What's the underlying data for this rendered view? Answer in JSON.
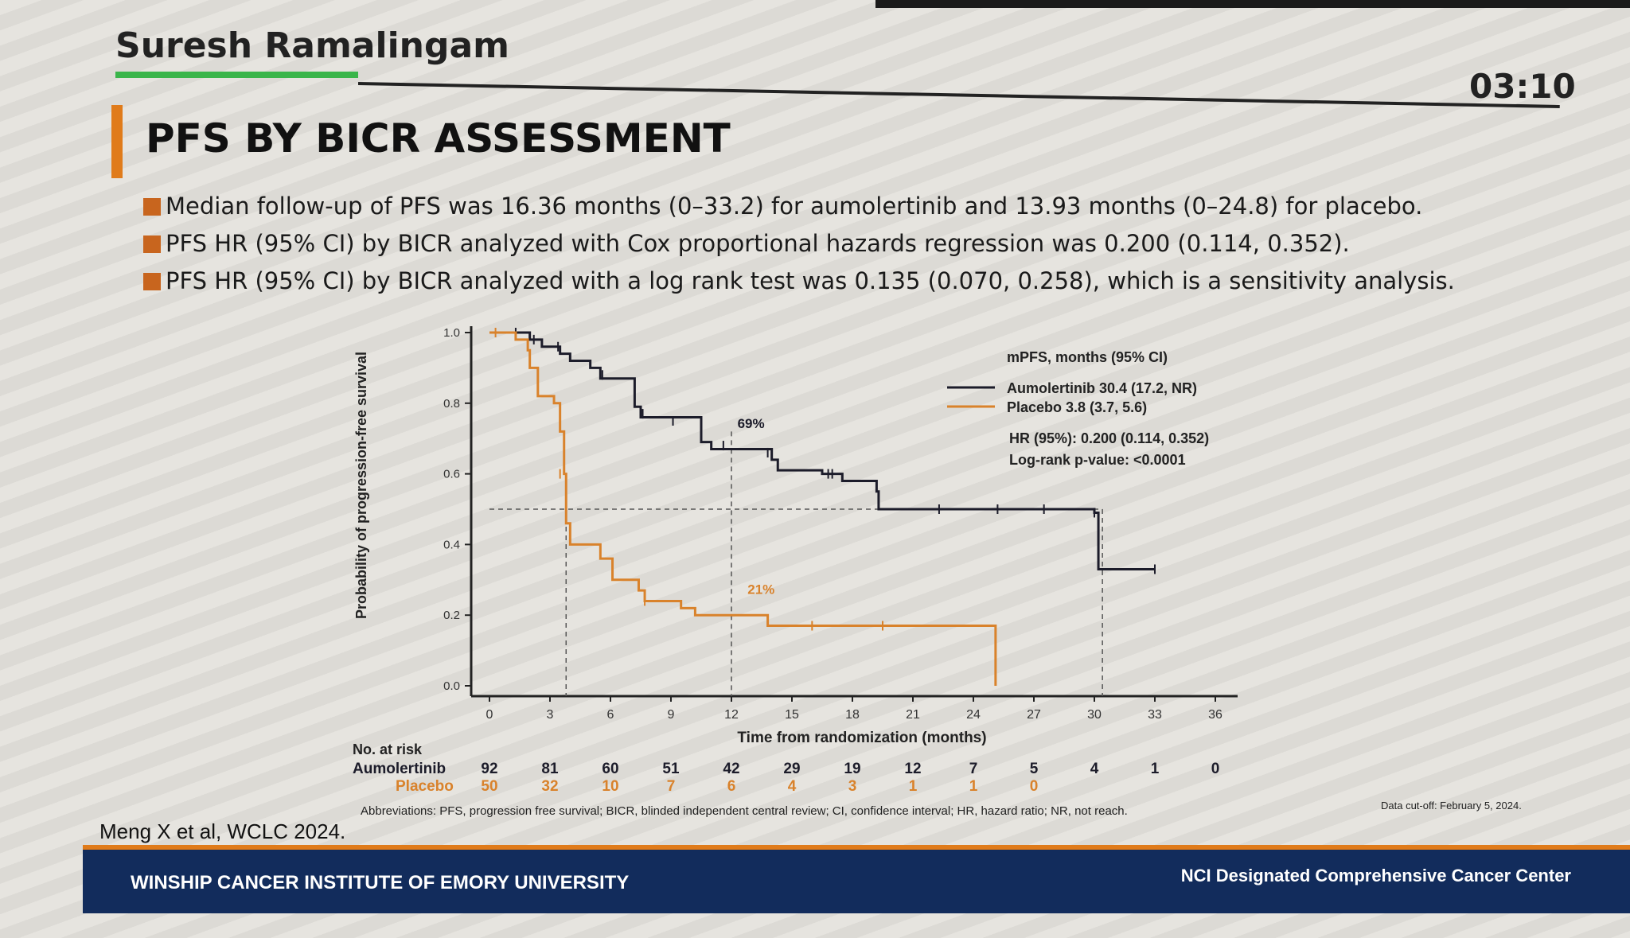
{
  "header": {
    "speaker_name": "Suresh Ramalingam",
    "timer": "03:10"
  },
  "slide": {
    "title": "PFS BY BICR ASSESSMENT",
    "bullets": [
      "Median follow-up of PFS was 16.36 months (0–33.2) for aumolertinib and 13.93 months (0–24.8) for placebo.",
      "PFS HR (95% CI) by BICR analyzed with Cox proportional hazards regression was 0.200 (0.114, 0.352).",
      "PFS HR (95% CI) by BICR analyzed with a log rank test was 0.135 (0.070, 0.258), which is a sensitivity analysis."
    ],
    "citation": "Meng X et al, WCLC 2024.",
    "abbreviations": "Abbreviations: PFS, progression free survival; BICR, blinded independent central review; CI, confidence interval; HR, hazard ratio; NR, not reach.",
    "data_cutoff": "Data cut-off: February 5, 2024."
  },
  "footer": {
    "left": "WINSHIP CANCER INSTITUTE OF EMORY UNIVERSITY",
    "right": "NCI Designated Comprehensive Cancer Center"
  },
  "colors": {
    "aumolertinib": "#1c1c2a",
    "placebo": "#d9822b",
    "accent_orange": "#e07b1a",
    "footer_navy": "#122c5c"
  },
  "chart_data": {
    "type": "line",
    "subtype": "kaplan-meier",
    "xlabel": "Time from randomization (months)",
    "ylabel": "Probability of progression-free survival",
    "xlim": [
      0,
      36
    ],
    "ylim": [
      0.0,
      1.0
    ],
    "x_ticks": [
      "0",
      "3",
      "6",
      "9",
      "12",
      "15",
      "18",
      "21",
      "24",
      "27",
      "30",
      "33",
      "36"
    ],
    "y_ticks": [
      "0.0",
      "0.2",
      "0.4",
      "0.6",
      "0.8",
      "1.0"
    ],
    "legend_title": "mPFS, months (95% CI)",
    "legend_position": "top-right",
    "stats": [
      "HR (95%): 0.200 (0.114, 0.352)",
      "Log-rank p-value: <0.0001"
    ],
    "annotations": [
      {
        "text": "69%",
        "x": 12.3,
        "y": 0.73,
        "color_key": "aumolertinib"
      },
      {
        "text": "21%",
        "x": 12.8,
        "y": 0.26,
        "color_key": "placebo"
      }
    ],
    "reference_lines": {
      "median_y": 0.5,
      "aumolertinib_median_x": 30.4,
      "placebo_median_x": 3.8,
      "landmark_x": 12
    },
    "series": [
      {
        "name": "Aumolertinib 30.4 (17.2, NR)",
        "color_key": "aumolertinib",
        "steps": [
          [
            0,
            1.0
          ],
          [
            2.0,
            0.98
          ],
          [
            2.6,
            0.96
          ],
          [
            3.5,
            0.94
          ],
          [
            4.0,
            0.92
          ],
          [
            5.0,
            0.9
          ],
          [
            5.5,
            0.87
          ],
          [
            7.2,
            0.79
          ],
          [
            7.5,
            0.76
          ],
          [
            10.5,
            0.69
          ],
          [
            11.0,
            0.67
          ],
          [
            14.0,
            0.64
          ],
          [
            14.3,
            0.61
          ],
          [
            16.5,
            0.6
          ],
          [
            17.5,
            0.58
          ],
          [
            19.2,
            0.55
          ],
          [
            19.3,
            0.5
          ],
          [
            30.0,
            0.49
          ],
          [
            30.2,
            0.33
          ],
          [
            33.0,
            0.33
          ]
        ],
        "censor": [
          [
            1.3,
            1.0
          ],
          [
            2.2,
            0.98
          ],
          [
            3.4,
            0.96
          ],
          [
            5.6,
            0.88
          ],
          [
            7.6,
            0.77
          ],
          [
            9.1,
            0.75
          ],
          [
            11.6,
            0.68
          ],
          [
            13.8,
            0.66
          ],
          [
            16.8,
            0.6
          ],
          [
            17.0,
            0.6
          ],
          [
            22.3,
            0.5
          ],
          [
            25.2,
            0.5
          ],
          [
            27.5,
            0.5
          ],
          [
            30.0,
            0.49
          ],
          [
            33.0,
            0.33
          ]
        ]
      },
      {
        "name": "Placebo 3.8 (3.7, 5.6)",
        "color_key": "placebo",
        "steps": [
          [
            0,
            1.0
          ],
          [
            1.3,
            0.98
          ],
          [
            1.9,
            0.95
          ],
          [
            2.0,
            0.9
          ],
          [
            2.4,
            0.82
          ],
          [
            3.2,
            0.8
          ],
          [
            3.5,
            0.72
          ],
          [
            3.7,
            0.6
          ],
          [
            3.8,
            0.46
          ],
          [
            4.0,
            0.4
          ],
          [
            5.5,
            0.36
          ],
          [
            6.1,
            0.3
          ],
          [
            7.4,
            0.27
          ],
          [
            7.7,
            0.24
          ],
          [
            9.5,
            0.22
          ],
          [
            10.2,
            0.2
          ],
          [
            13.8,
            0.17
          ],
          [
            25.0,
            0.17
          ],
          [
            25.1,
            0.0
          ]
        ],
        "censor": [
          [
            0.3,
            1.0
          ],
          [
            3.5,
            0.6
          ],
          [
            7.7,
            0.24
          ],
          [
            16.0,
            0.17
          ],
          [
            19.5,
            0.17
          ]
        ]
      }
    ],
    "risk_table": {
      "title": "No. at risk",
      "rows": [
        {
          "label": "Aumolertinib",
          "color_key": "aumolertinib",
          "values": [
            "92",
            "81",
            "60",
            "51",
            "42",
            "29",
            "19",
            "12",
            "7",
            "5",
            "4",
            "1",
            "0"
          ]
        },
        {
          "label": "Placebo",
          "color_key": "placebo",
          "values": [
            "50",
            "32",
            "10",
            "7",
            "6",
            "4",
            "3",
            "1",
            "1",
            "0"
          ]
        }
      ]
    }
  }
}
